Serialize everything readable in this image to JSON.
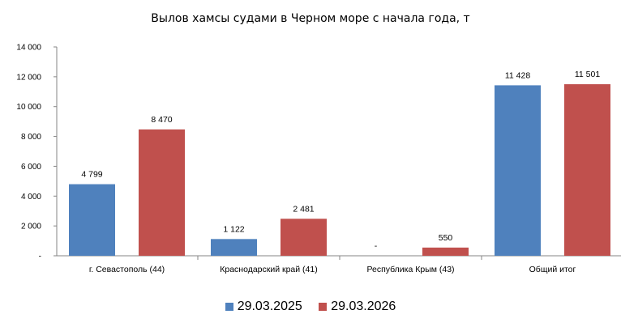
{
  "chart_data": {
    "type": "bar",
    "title": "Вылов хамсы судами в Черном море с начала  года, т",
    "categories": [
      "г. Севастополь (44)",
      "Краснодарский край (41)",
      "Республика Крым (43)",
      "Общий итог"
    ],
    "series": [
      {
        "name": "29.03.2025",
        "color": "#4f81bd",
        "values": [
          4799,
          1122,
          0,
          11428
        ],
        "labels": [
          "4 799",
          "1 122",
          "-",
          "11 428"
        ]
      },
      {
        "name": "29.03.2026",
        "color": "#c0504d",
        "values": [
          8470,
          2481,
          550,
          11501
        ],
        "labels": [
          "8 470",
          "2 481",
          "550",
          "11 501"
        ]
      }
    ],
    "ylim": [
      0,
      14000
    ],
    "yticks": [
      0,
      2000,
      4000,
      6000,
      8000,
      10000,
      12000,
      14000
    ],
    "ytick_labels": [
      "-",
      "2 000",
      "4 000",
      "6 000",
      "8 000",
      "10 000",
      "12 000",
      "14 000"
    ],
    "grid": false,
    "legend_position": "bottom"
  }
}
